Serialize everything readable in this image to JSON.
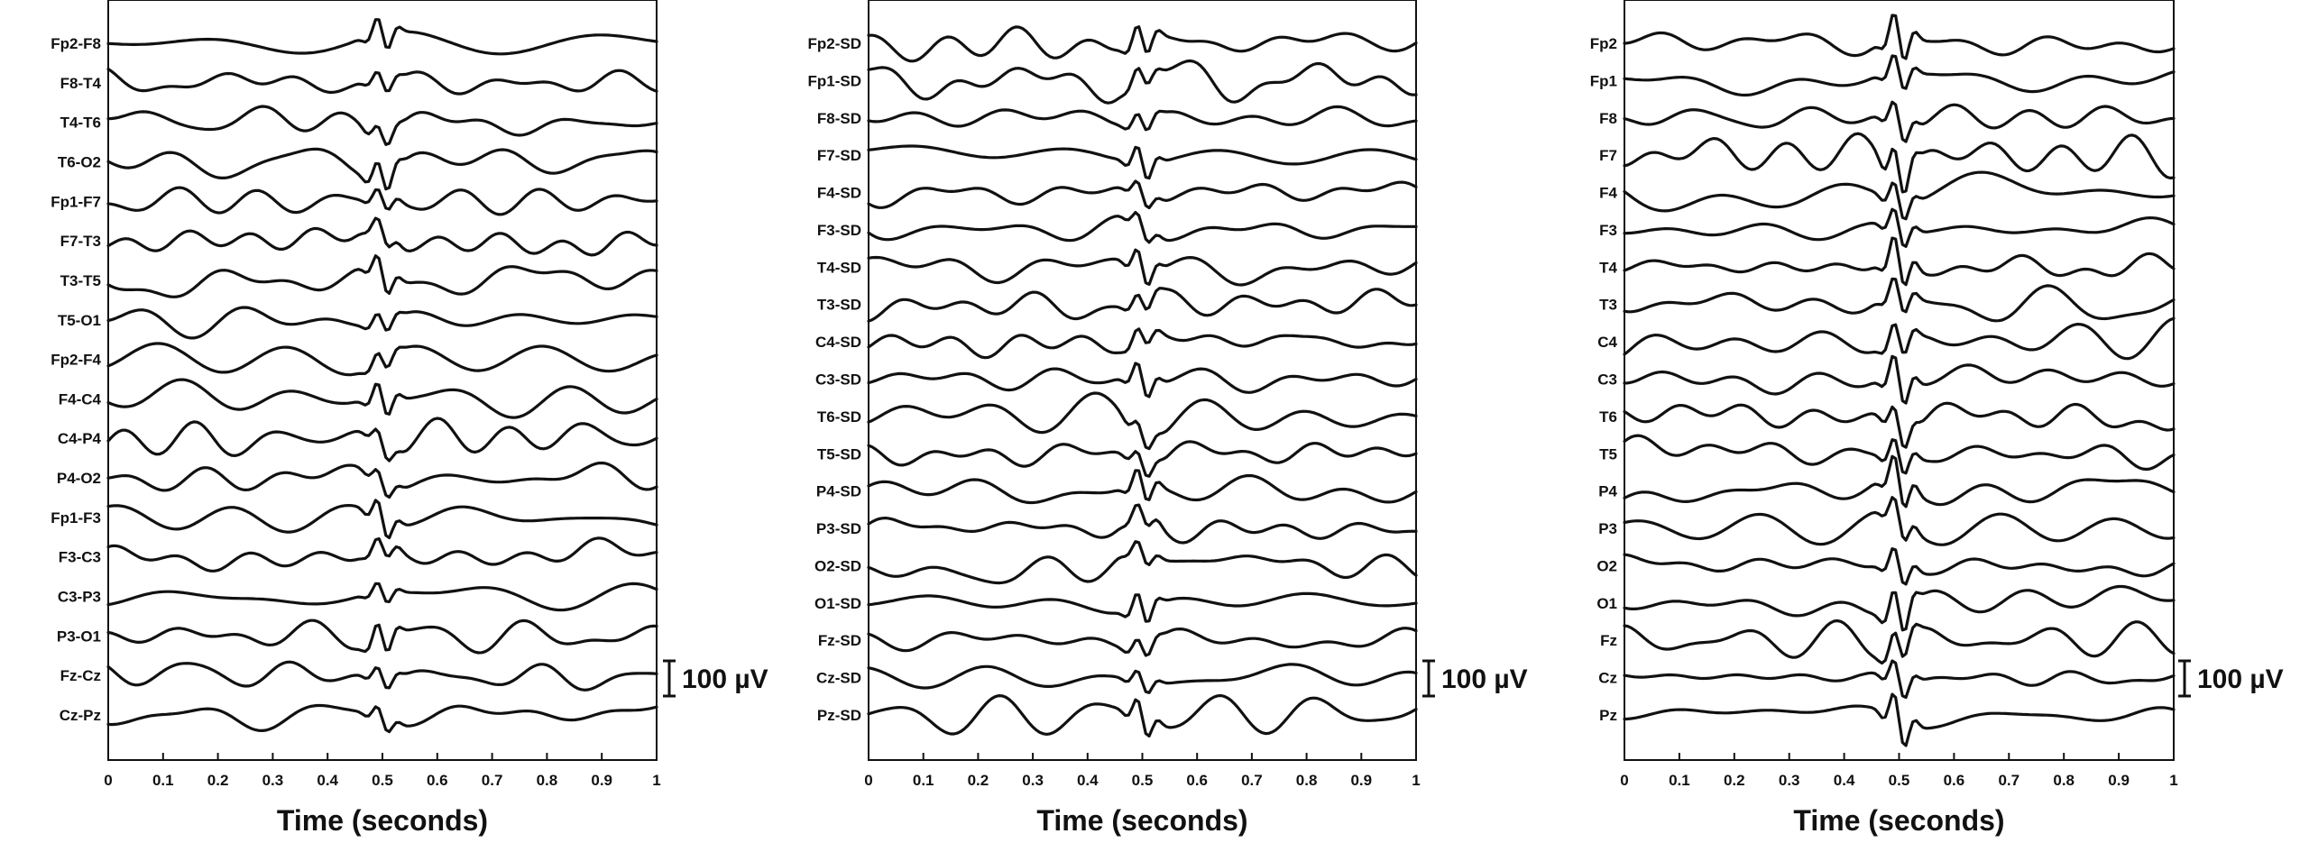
{
  "chart_data": [
    {
      "type": "line",
      "panel": "left",
      "xlabel": "Time (seconds)",
      "xlim": [
        0,
        1
      ],
      "x_ticks": [
        "0",
        "0.1",
        "0.2",
        "0.3",
        "0.4",
        "0.5",
        "0.6",
        "0.7",
        "0.8",
        "0.9",
        "1"
      ],
      "channels": [
        "Fp2-F8",
        "F8-T4",
        "T4-T6",
        "T6-O2",
        "Fp1-F7",
        "F7-T3",
        "T3-T5",
        "T5-O1",
        "Fp2-F4",
        "F4-C4",
        "C4-P4",
        "P4-O2",
        "Fp1-F3",
        "F3-C3",
        "C3-P3",
        "P3-O1",
        "Fz-Cz",
        "Cz-Pz"
      ],
      "scale_bar": "100 µV",
      "show_scale_bar": true
    },
    {
      "type": "line",
      "panel": "middle",
      "xlabel": "Time (seconds)",
      "xlim": [
        0,
        1
      ],
      "x_ticks": [
        "0",
        "0.1",
        "0.2",
        "0.3",
        "0.4",
        "0.5",
        "0.6",
        "0.7",
        "0.8",
        "0.9",
        "1"
      ],
      "channels": [
        "Fp2-SD",
        "Fp1-SD",
        "F8-SD",
        "F7-SD",
        "F4-SD",
        "F3-SD",
        "T4-SD",
        "T3-SD",
        "C4-SD",
        "C3-SD",
        "T6-SD",
        "T5-SD",
        "P4-SD",
        "P3-SD",
        "O2-SD",
        "O1-SD",
        "Fz-SD",
        "Cz-SD",
        "Pz-SD"
      ],
      "scale_bar": "100 µV",
      "show_scale_bar": true
    },
    {
      "type": "line",
      "panel": "right",
      "xlabel": "Time (seconds)",
      "xlim": [
        0,
        1
      ],
      "x_ticks": [
        "0",
        "0.1",
        "0.2",
        "0.3",
        "0.4",
        "0.5",
        "0.6",
        "0.7",
        "0.8",
        "0.9",
        "1"
      ],
      "channels": [
        "Fp2",
        "Fp1",
        "F8",
        "F7",
        "F4",
        "F3",
        "T4",
        "T3",
        "C4",
        "C3",
        "T6",
        "T5",
        "P4",
        "P3",
        "O2",
        "O1",
        "Fz",
        "Cz",
        "Pz"
      ],
      "scale_bar": "100 µV",
      "show_scale_bar": true
    }
  ]
}
